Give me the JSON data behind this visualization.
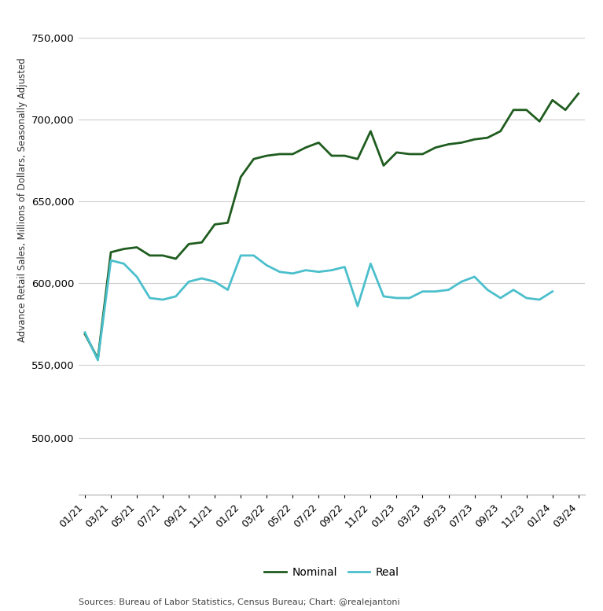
{
  "nominal": [
    569000,
    554000,
    619000,
    621000,
    622000,
    617000,
    617000,
    615000,
    624000,
    625000,
    636000,
    637000,
    665000,
    676000,
    678000,
    679000,
    679000,
    683000,
    686000,
    678000,
    678000,
    676000,
    693000,
    672000,
    680000,
    679000,
    679000,
    683000,
    685000,
    686000,
    688000,
    689000,
    693000,
    706000,
    706000,
    699000,
    712000,
    706000,
    716000
  ],
  "real": [
    570000,
    553000,
    614000,
    612000,
    604000,
    591000,
    590000,
    592000,
    601000,
    603000,
    601000,
    596000,
    617000,
    617000,
    611000,
    607000,
    606000,
    608000,
    607000,
    608000,
    610000,
    586000,
    612000,
    592000,
    591000,
    591000,
    595000,
    595000,
    596000,
    601000,
    604000,
    596000,
    591000,
    596000,
    591000,
    590000,
    595000
  ],
  "nominal_color": "#1f5c1f",
  "real_color": "#4bbfcc",
  "tick_positions": [
    0,
    2,
    4,
    6,
    8,
    10,
    12,
    14,
    16,
    18,
    20,
    22,
    24,
    26,
    28,
    30,
    32,
    34,
    36,
    38
  ],
  "tick_labels": [
    "01/21",
    "03/21",
    "05/21",
    "07/21",
    "09/21",
    "11/21",
    "01/22",
    "03/22",
    "05/22",
    "07/22",
    "09/22",
    "11/22",
    "01/23",
    "03/23",
    "05/23",
    "07/23",
    "09/23",
    "11/23",
    "01/24",
    "03/24"
  ],
  "yticks": [
    500000,
    550000,
    600000,
    650000,
    700000,
    750000
  ],
  "ylim": [
    485000,
    762000
  ],
  "xlim": [
    -0.5,
    38.5
  ],
  "ylabel": "Advance Retail Sales, Millions of Dollars, Seasonally Adjusted",
  "source_text": "Sources: Bureau of Labor Statistics, Census Bureau; Chart: @realejantoni",
  "legend_nominal": "Nominal",
  "legend_real": "Real",
  "background_color": "#ffffff",
  "line_width": 2.0,
  "grid_color": "#d0d0d0"
}
